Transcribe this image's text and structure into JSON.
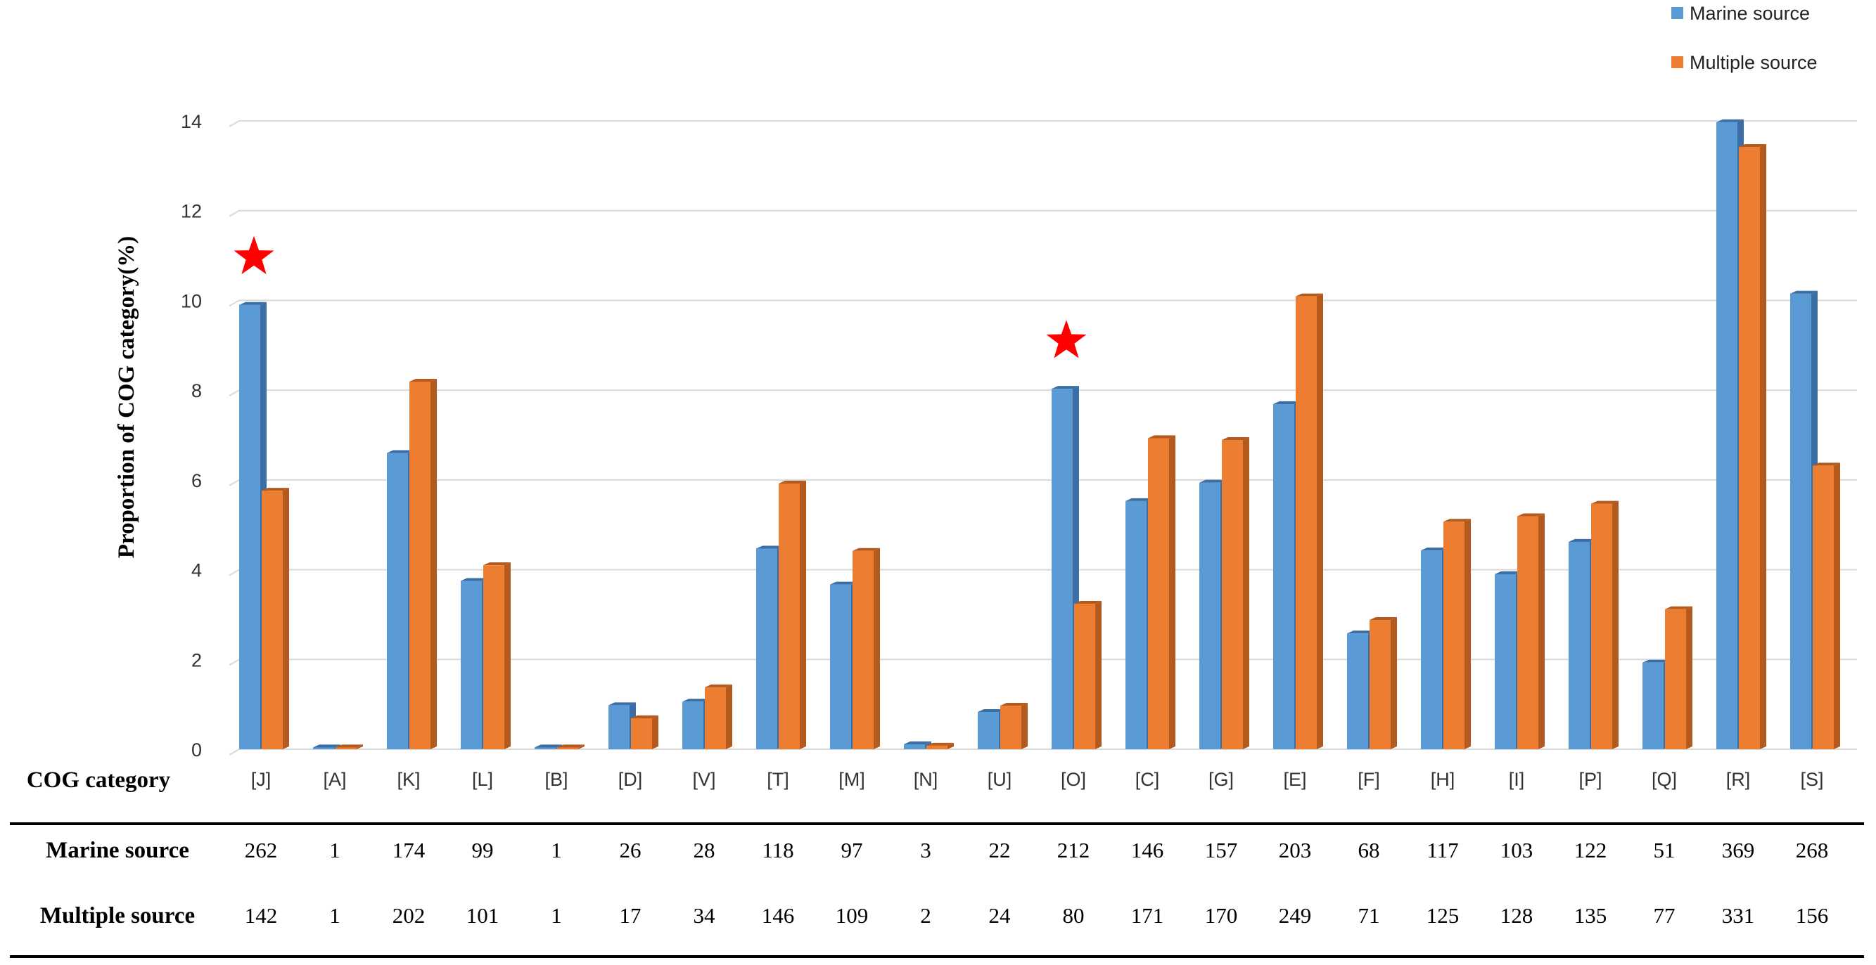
{
  "chart_data": {
    "type": "bar",
    "ylabel": "Proportion of COG category(%)",
    "xlabel": "COG category",
    "ylim": [
      0,
      14
    ],
    "yticks": [
      0,
      2,
      4,
      6,
      8,
      10,
      12,
      14
    ],
    "grid": true,
    "legend_position": "top-right",
    "categories": [
      "[J]",
      "[A]",
      "[K]",
      "[L]",
      "[B]",
      "[D]",
      "[V]",
      "[T]",
      "[M]",
      "[N]",
      "[U]",
      "[O]",
      "[C]",
      "[G]",
      "[E]",
      "[F]",
      "[H]",
      "[I]",
      "[P]",
      "[Q]",
      "[R]",
      "[S]"
    ],
    "series": [
      {
        "name": "Marine source",
        "color": "#5b9bd5",
        "side_color": "#3a6ea5",
        "values": [
          9.9,
          0.04,
          6.6,
          3.75,
          0.04,
          0.98,
          1.06,
          4.47,
          3.67,
          0.11,
          0.83,
          8.03,
          5.53,
          5.94,
          7.69,
          2.58,
          4.43,
          3.9,
          4.62,
          1.93,
          13.97,
          10.15
        ]
      },
      {
        "name": "Multiple source",
        "color": "#ed7d31",
        "side_color": "#b35a1f",
        "values": [
          5.76,
          0.04,
          8.19,
          4.1,
          0.04,
          0.69,
          1.38,
          5.92,
          4.42,
          0.08,
          0.97,
          3.24,
          6.93,
          6.89,
          10.09,
          2.88,
          5.07,
          5.19,
          5.47,
          3.12,
          13.42,
          6.32
        ]
      }
    ],
    "annotations": [
      {
        "category": "[J]",
        "marker": "star",
        "color": "#ff0000"
      },
      {
        "category": "[O]",
        "marker": "star",
        "color": "#ff0000"
      }
    ],
    "table": {
      "header": "COG category",
      "rows": [
        {
          "label": "Marine source",
          "values": [
            "262",
            "1",
            "174",
            "99",
            "1",
            "26",
            "28",
            "118",
            "97",
            "3",
            "22",
            "212",
            "146",
            "157",
            "203",
            "68",
            "117",
            "103",
            "122",
            "51",
            "369",
            "268"
          ]
        },
        {
          "label": "Multiple source",
          "values": [
            "142",
            "1",
            "202",
            "101",
            "1",
            "17",
            "34",
            "146",
            "109",
            "2",
            "24",
            "80",
            "171",
            "170",
            "249",
            "71",
            "125",
            "128",
            "135",
            "77",
            "331",
            "156"
          ]
        }
      ]
    }
  }
}
